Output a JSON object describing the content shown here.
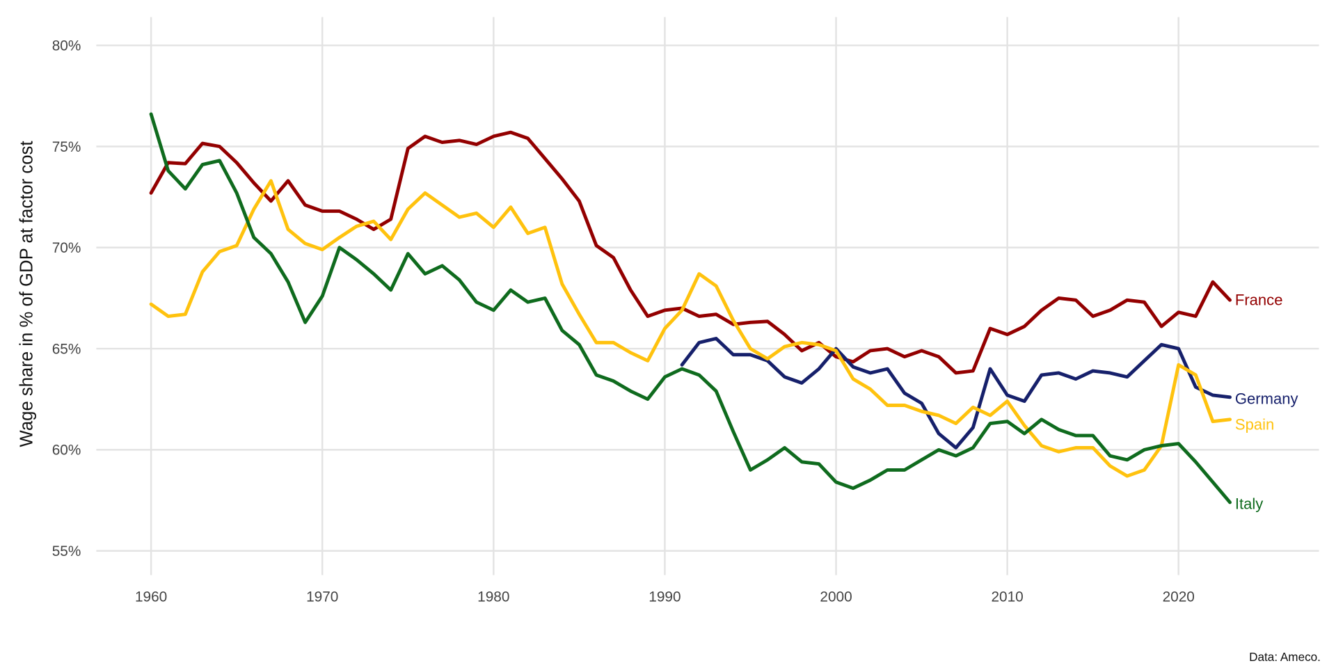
{
  "chart_data": {
    "type": "line",
    "title": "",
    "xlabel": "",
    "ylabel": "Wage share in % of GDP at factor cost",
    "source": "Data: Ameco.",
    "xlim": [
      1956.8,
      2028.2
    ],
    "ylim": [
      53.8,
      81.4
    ],
    "x_ticks": [
      1960,
      1970,
      1980,
      1990,
      2000,
      2010,
      2020
    ],
    "y_ticks": [
      55,
      60,
      65,
      70,
      75,
      80
    ],
    "y_tick_labels": [
      "55%",
      "60%",
      "65%",
      "70%",
      "75%",
      "80%"
    ],
    "grid": true,
    "legend": "direct labels at line ends (right)",
    "series": [
      {
        "name": "France",
        "color": "#930000",
        "start_year": 1960,
        "values": [
          72.7,
          74.2,
          74.15,
          75.15,
          75.0,
          74.2,
          73.2,
          72.3,
          73.3,
          72.1,
          71.8,
          71.8,
          71.4,
          70.9,
          71.4,
          74.9,
          75.5,
          75.2,
          75.3,
          75.1,
          75.5,
          75.7,
          75.4,
          74.4,
          73.4,
          72.3,
          70.1,
          69.5,
          67.9,
          66.6,
          66.9,
          67.0,
          66.6,
          66.7,
          66.2,
          66.3,
          66.35,
          65.7,
          64.9,
          65.3,
          64.6,
          64.35,
          64.9,
          65.0,
          64.6,
          64.9,
          64.6,
          63.8,
          63.9,
          66.0,
          65.7,
          66.1,
          66.9,
          67.5,
          67.4,
          66.6,
          66.9,
          67.4,
          67.3,
          66.1,
          66.8,
          66.6,
          68.3,
          67.4
        ]
      },
      {
        "name": "Germany",
        "color": "#16206b",
        "start_year": 1991,
        "values": [
          64.2,
          65.3,
          65.5,
          64.7,
          64.7,
          64.4,
          63.6,
          63.3,
          64.0,
          65.0,
          64.1,
          63.8,
          64.0,
          62.8,
          62.3,
          60.8,
          60.1,
          61.1,
          64.0,
          62.7,
          62.4,
          63.7,
          63.8,
          63.5,
          63.9,
          63.8,
          63.6,
          64.4,
          65.2,
          65.0,
          63.1,
          62.7,
          62.6
        ]
      },
      {
        "name": "Spain",
        "color": "#ffc20e",
        "start_year": 1960,
        "values": [
          67.2,
          66.6,
          66.7,
          68.8,
          69.8,
          70.1,
          71.9,
          73.3,
          70.9,
          70.2,
          69.9,
          70.5,
          71.05,
          71.3,
          70.4,
          71.9,
          72.7,
          72.1,
          71.5,
          71.7,
          71.0,
          72.0,
          70.7,
          71.0,
          68.2,
          66.7,
          65.3,
          65.3,
          64.8,
          64.4,
          66.0,
          66.9,
          68.7,
          68.1,
          66.4,
          65.0,
          64.5,
          65.1,
          65.3,
          65.2,
          64.9,
          63.5,
          63.0,
          62.2,
          62.2,
          61.9,
          61.7,
          61.3,
          62.1,
          61.7,
          62.4,
          61.2,
          60.2,
          59.9,
          60.1,
          60.1,
          59.2,
          58.7,
          59.0,
          60.2,
          64.2,
          63.7,
          61.4,
          61.5
        ]
      },
      {
        "name": "Italy",
        "color": "#0f6b1e",
        "start_year": 1960,
        "values": [
          76.6,
          73.8,
          72.9,
          74.1,
          74.3,
          72.7,
          70.5,
          69.7,
          68.3,
          66.3,
          67.6,
          70.0,
          69.4,
          68.7,
          67.9,
          69.7,
          68.7,
          69.1,
          68.4,
          67.3,
          66.9,
          67.9,
          67.3,
          67.5,
          65.9,
          65.2,
          63.7,
          63.4,
          62.9,
          62.5,
          63.6,
          64.0,
          63.7,
          62.9,
          60.9,
          59.0,
          59.5,
          60.1,
          59.4,
          59.3,
          58.4,
          58.1,
          58.5,
          59.0,
          59.0,
          59.5,
          60.0,
          59.7,
          60.1,
          61.3,
          61.4,
          60.8,
          61.5,
          61.0,
          60.7,
          60.7,
          59.7,
          59.5,
          60.0,
          60.2,
          60.3,
          59.4,
          58.4,
          57.4
        ]
      }
    ]
  }
}
